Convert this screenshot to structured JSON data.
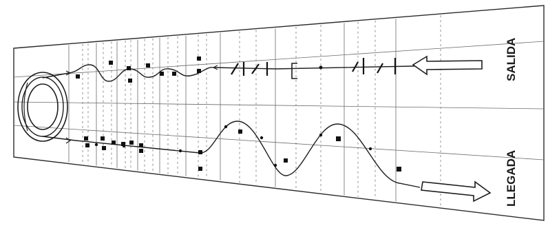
{
  "diagram": {
    "labels": {
      "top": "SALIDA",
      "bottom": "LLEGADA"
    },
    "colors": {
      "ink": "#1c1c1c",
      "paper": "#ffffff",
      "grid": "#6a6a6a"
    },
    "icons": [
      "turn-circle-icon",
      "arrow-left-icon",
      "arrow-right-icon",
      "cone-icon",
      "gate-bar-icon"
    ]
  }
}
